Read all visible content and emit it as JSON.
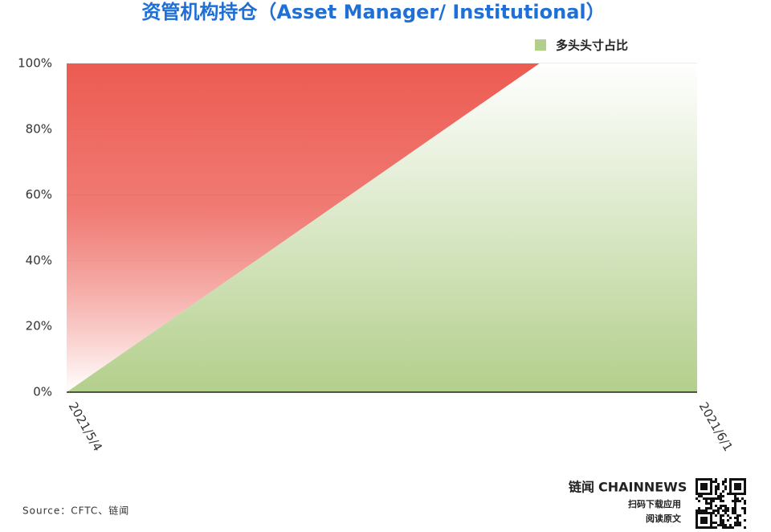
{
  "chart_data": {
    "type": "area",
    "title": "资管机构持仓（Asset Manager/ Institutional）",
    "categories": [
      "2021/5/4",
      null,
      null,
      null,
      "2021/6/1"
    ],
    "series": [
      {
        "name": "多头头寸占比",
        "color": "#b3cf8c",
        "values": [
          0,
          33.3,
          66.7,
          100,
          100
        ]
      }
    ],
    "remainder_color": "#ec5b52",
    "ylim": [
      0,
      100
    ],
    "yticks": [
      {
        "value": 0,
        "label": "0%"
      },
      {
        "value": 20,
        "label": "20%"
      },
      {
        "value": 40,
        "label": "40%"
      },
      {
        "value": 60,
        "label": "60%"
      },
      {
        "value": 80,
        "label": "80%"
      },
      {
        "value": 100,
        "label": "100%"
      }
    ],
    "grid": true,
    "legend": "top-right",
    "source": "Source：CFTC、链闻"
  },
  "footer": {
    "brand": "链闻",
    "brand_en": "CHAINNEWS",
    "line1": "扫码下载应用",
    "line2": "阅读原文"
  }
}
